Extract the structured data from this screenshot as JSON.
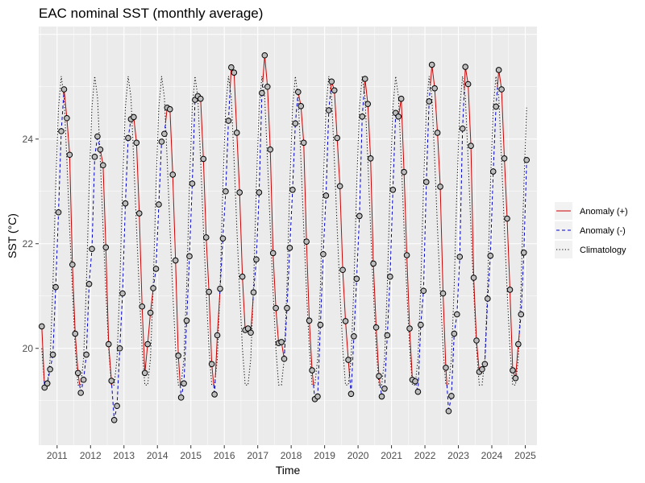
{
  "chart_data": {
    "type": "line",
    "title": "EAC nominal SST (monthly average)",
    "xlabel": "Time",
    "ylabel": "SST (°C)",
    "x_tick_labels": [
      "2011",
      "2012",
      "2013",
      "2014",
      "2015",
      "2016",
      "2017",
      "2018",
      "2019",
      "2020",
      "2021",
      "2022",
      "2023",
      "2024",
      "2025"
    ],
    "y_tick_labels": [
      "20",
      "22",
      "24"
    ],
    "xlim": [
      2010.45,
      2025.35
    ],
    "ylim": [
      18.15,
      26.15
    ],
    "grid": true,
    "legend_position": "right",
    "legend": [
      {
        "label": "Anomaly (+)",
        "color": "#cc0000",
        "style": "solid"
      },
      {
        "label": "Anomaly (-)",
        "color": "#0000cc",
        "style": "dashed"
      },
      {
        "label": "Climatology",
        "color": "#000000",
        "style": "dotted"
      }
    ],
    "point_fill": "#bdbdbd",
    "panel_background": "#ebebeb",
    "climatology": {
      "months": [
        1,
        2,
        3,
        4,
        5,
        6,
        7,
        8,
        9,
        10,
        11,
        12
      ],
      "values": [
        24.6,
        25.2,
        24.8,
        23.6,
        22.3,
        21.1,
        20.0,
        19.3,
        19.3,
        19.8,
        21.2,
        23.1
      ]
    },
    "observed": {
      "start_year": 2010,
      "start_month": 7,
      "values": [
        20.42,
        19.25,
        19.33,
        19.6,
        19.88,
        21.17,
        22.6,
        24.15,
        24.95,
        24.4,
        23.7,
        21.6,
        20.28,
        19.53,
        19.15,
        19.4,
        19.88,
        21.23,
        21.9,
        23.66,
        24.05,
        23.8,
        23.5,
        21.93,
        20.08,
        19.38,
        18.63,
        18.9,
        20.0,
        21.05,
        22.77,
        24.02,
        24.38,
        24.42,
        23.93,
        22.58,
        20.8,
        19.53,
        20.08,
        20.68,
        21.15,
        21.52,
        22.75,
        23.95,
        24.1,
        24.6,
        24.57,
        23.32,
        21.68,
        19.86,
        19.06,
        19.33,
        20.53,
        21.76,
        23.15,
        24.75,
        24.82,
        24.77,
        23.62,
        22.12,
        21.08,
        19.7,
        19.12,
        20.25,
        21.14,
        22.1,
        23.0,
        24.35,
        25.37,
        25.27,
        24.12,
        22.98,
        21.37,
        20.35,
        20.38,
        20.3,
        21.07,
        21.7,
        22.98,
        24.88,
        25.6,
        25.0,
        23.8,
        21.82,
        20.77,
        20.1,
        20.12,
        19.8,
        20.77,
        21.92,
        23.03,
        24.3,
        24.9,
        24.63,
        23.93,
        22.04,
        20.53,
        19.58,
        19.03,
        19.08,
        20.45,
        21.8,
        22.92,
        24.55,
        25.1,
        24.93,
        24.02,
        23.1,
        21.5,
        20.52,
        19.78,
        19.13,
        20.23,
        21.33,
        22.53,
        24.43,
        25.15,
        24.67,
        23.63,
        21.62,
        20.4,
        19.47,
        19.08,
        19.23,
        20.25,
        21.37,
        23.03,
        24.5,
        24.43,
        24.77,
        23.37,
        21.78,
        20.38,
        19.4,
        19.37,
        19.17,
        20.45,
        21.1,
        23.18,
        24.72,
        25.42,
        24.97,
        24.12,
        23.09,
        21.05,
        19.63,
        18.8,
        19.09,
        20.28,
        20.65,
        21.75,
        24.2,
        25.38,
        25.05,
        23.87,
        21.35,
        20.15,
        19.55,
        19.6,
        19.7,
        20.95,
        21.77,
        23.38,
        24.62,
        25.32,
        24.95,
        23.63,
        22.48,
        21.12,
        19.58,
        19.43,
        20.08,
        20.65,
        21.83,
        23.6
      ]
    }
  }
}
